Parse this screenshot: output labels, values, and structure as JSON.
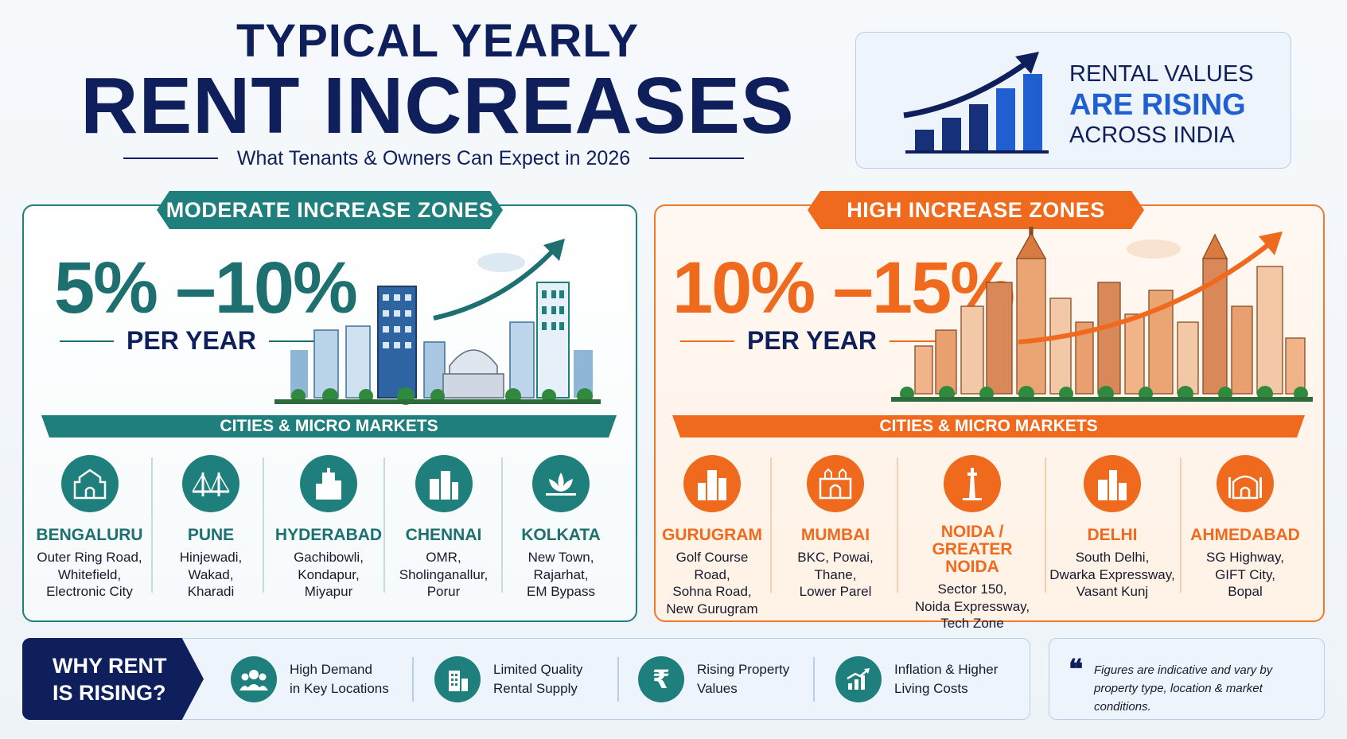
{
  "header": {
    "title_line1": "TYPICAL YEARLY",
    "title_line2": "RENT INCREASES",
    "subtitle": "What Tenants & Owners Can Expect in 2026"
  },
  "rising_card": {
    "line1": "RENTAL VALUES",
    "line2": "ARE RISING",
    "line3": "ACROSS INDIA"
  },
  "moderate": {
    "tag": "MODERATE INCREASE ZONES",
    "range": "5% –10%",
    "per_year": "PER YEAR",
    "cities_label": "CITIES & MICRO MARKETS",
    "cities": [
      {
        "name": "BENGALURU",
        "areas": [
          "Outer Ring Road,",
          "Whitefield,",
          "Electronic City"
        ]
      },
      {
        "name": "PUNE",
        "areas": [
          "Hinjewadi,",
          "Wakad,",
          "Kharadi"
        ]
      },
      {
        "name": "HYDERABAD",
        "areas": [
          "Gachibowli,",
          "Kondapur,",
          "Miyapur"
        ]
      },
      {
        "name": "CHENNAI",
        "areas": [
          "OMR,",
          "Sholinganallur,",
          "Porur"
        ]
      },
      {
        "name": "KOLKATA",
        "areas": [
          "New Town,",
          "Rajarhat,",
          "EM Bypass"
        ]
      }
    ]
  },
  "high": {
    "tag": "HIGH INCREASE ZONES",
    "range": "10% –15%",
    "per_year": "PER YEAR",
    "cities_label": "CITIES & MICRO MARKETS",
    "cities": [
      {
        "name": "GURUGRAM",
        "name2": "",
        "areas": [
          "Golf Course Road,",
          "Sohna Road,",
          "New Gurugram"
        ]
      },
      {
        "name": "MUMBAI",
        "name2": "",
        "areas": [
          "BKC, Powai,",
          "Thane,",
          "Lower Parel"
        ]
      },
      {
        "name": "NOIDA /",
        "name2": "GREATER NOIDA",
        "areas": [
          "Sector 150,",
          "Noida Expressway,",
          "Tech Zone"
        ]
      },
      {
        "name": "DELHI",
        "name2": "",
        "areas": [
          "South Delhi,",
          "Dwarka Expressway,",
          "Vasant Kunj"
        ]
      },
      {
        "name": "AHMEDABAD",
        "name2": "",
        "areas": [
          "SG Highway,",
          "GIFT City,",
          "Bopal"
        ]
      }
    ]
  },
  "why": {
    "line1": "WHY RENT",
    "line2": "IS RISING?",
    "reasons": [
      {
        "l1": "High Demand",
        "l2": "in Key Locations",
        "icon": "people-icon"
      },
      {
        "l1": "Limited Quality",
        "l2": "Rental Supply",
        "icon": "building-icon"
      },
      {
        "l1": "Rising Property",
        "l2": "Values",
        "icon": "rupee-icon"
      },
      {
        "l1": "Inflation & Higher",
        "l2": "Living Costs",
        "icon": "growth-chart-icon"
      }
    ]
  },
  "note": {
    "quote_mark": "❝",
    "l1": "Figures are indicative and vary by",
    "l2": "property type, location & market conditions."
  },
  "colors": {
    "navy": "#0f1f5c",
    "teal": "#1f7f7c",
    "orange": "#f06a1e",
    "blue": "#1f5fd0"
  }
}
